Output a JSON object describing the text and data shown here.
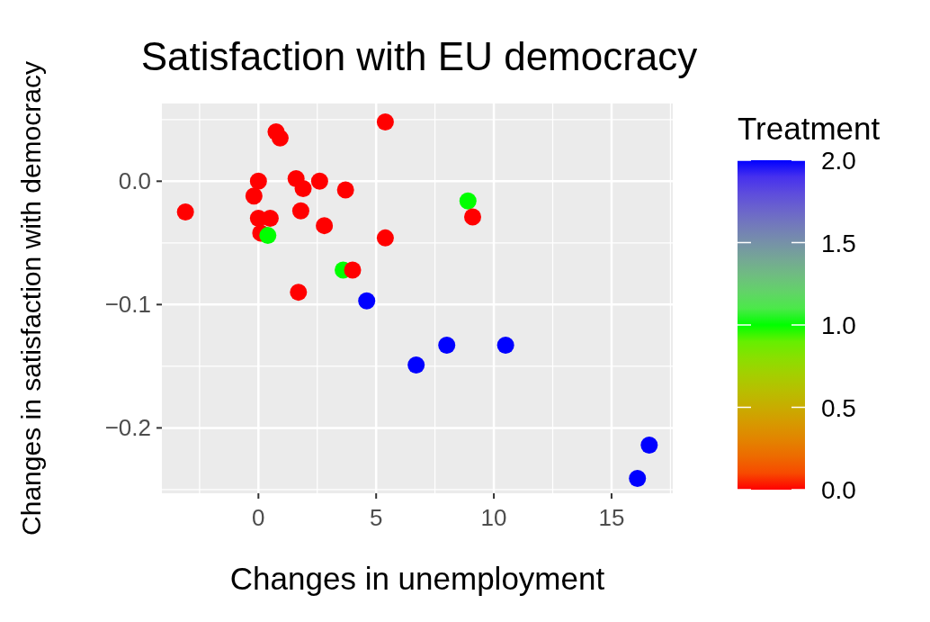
{
  "chart_data": {
    "type": "scatter",
    "title": "Satisfaction with EU democracy",
    "xlabel": "Changes in unemployment",
    "ylabel": "Changes in satisfaction with democracy",
    "clabel": "Treatment",
    "x": [
      -3.1,
      0.75,
      0.92,
      5.39,
      0,
      -0.19,
      1.6,
      1.9,
      2.6,
      3.7,
      1.8,
      0,
      0.5,
      2.8,
      0.1,
      0.4,
      5.39,
      3.6,
      4.0,
      1.7,
      4.6,
      8.9,
      9.1,
      6.7,
      8.0,
      10.5,
      16.6,
      16.1
    ],
    "values": [
      -0.025,
      0.04,
      0.035,
      0.048,
      0,
      -0.012,
      0.002,
      -0.006,
      0,
      -0.007,
      -0.024,
      -0.03,
      -0.03,
      -0.036,
      -0.042,
      -0.044,
      -0.046,
      -0.072,
      -0.072,
      -0.09,
      -0.097,
      -0.016,
      -0.029,
      -0.149,
      -0.133,
      -0.133,
      -0.214,
      -0.241
    ],
    "cvalues": [
      0,
      0,
      0,
      0,
      0,
      0,
      0,
      0,
      0,
      0,
      0,
      0,
      0,
      0,
      0,
      1,
      0,
      1,
      0,
      0,
      2,
      1,
      0,
      2,
      2,
      2,
      2,
      2
    ],
    "clim": [
      0,
      2
    ],
    "cticks": [
      {
        "value": 0,
        "label": "0.0"
      },
      0.5,
      {
        "value": 1,
        "label": "1.0"
      },
      1.5,
      {
        "value": 2,
        "label": "2.0"
      }
    ],
    "xlim": [
      -4.1,
      17.6
    ],
    "ylim": [
      -0.253,
      0.063
    ],
    "xticks": [
      0,
      5,
      10,
      15
    ],
    "yticks": [
      -0.2,
      -0.1,
      {
        "value": 0,
        "label": "0.0"
      }
    ],
    "grid": true,
    "marker": "circle"
  }
}
